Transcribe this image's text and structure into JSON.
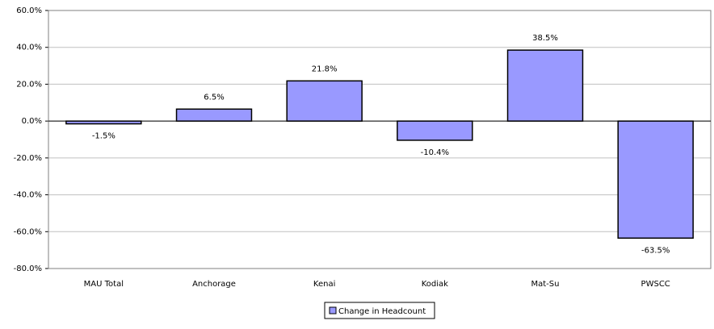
{
  "chart_data": {
    "type": "bar",
    "categories": [
      "MAU Total",
      "Anchorage",
      "Kenai",
      "Kodiak",
      "Mat-Su",
      "PWSCC"
    ],
    "series": [
      {
        "name": "Change in Headcount",
        "color": "#9999ff",
        "values": [
          -1.5,
          6.5,
          21.8,
          -10.4,
          38.5,
          -63.5
        ],
        "value_labels": [
          "-1.5%",
          "6.5%",
          "21.8%",
          "-10.4%",
          "38.5%",
          "-63.5%"
        ]
      }
    ],
    "ylim": [
      -80,
      60
    ],
    "yticks": [
      {
        "value": -80,
        "label": "-80.0%"
      },
      {
        "value": -60,
        "label": "-60.0%"
      },
      {
        "value": -40,
        "label": "-40.0%"
      },
      {
        "value": -20,
        "label": "-20.0%"
      },
      {
        "value": 0,
        "label": "0.0%"
      },
      {
        "value": 20,
        "label": "20.0%"
      },
      {
        "value": 40,
        "label": "40.0%"
      },
      {
        "value": 60,
        "label": "60.0%"
      }
    ],
    "grid": true,
    "legend": "bottom"
  }
}
